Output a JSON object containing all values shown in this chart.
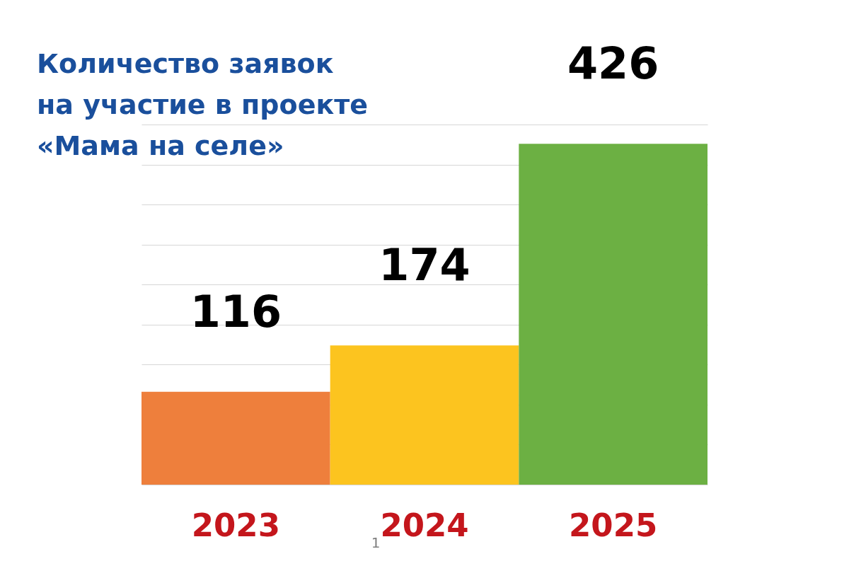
{
  "chart_data": {
    "type": "bar",
    "title": "Количество заявок\nна участие в проекте\n«Мама на селе»",
    "categories": [
      "2023",
      "2024",
      "2025"
    ],
    "values": [
      116,
      174,
      426
    ],
    "colors": [
      "#ee7f3c",
      "#fcc41f",
      "#6cb043"
    ],
    "data_labels": true,
    "grid": "y",
    "tick_labels": "x",
    "annotations": [
      "1"
    ]
  }
}
